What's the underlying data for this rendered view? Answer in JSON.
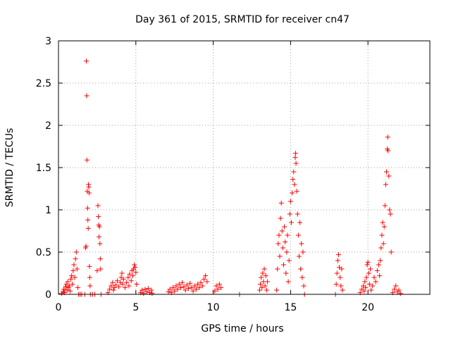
{
  "chart_data": {
    "type": "scatter",
    "title": "Day 361 of 2015, SRMTID for receiver cn47",
    "xlabel": "GPS time / hours",
    "ylabel": "SRMTID / TECUs",
    "xlim": [
      0,
      24
    ],
    "ylim": [
      0,
      3
    ],
    "xticks": [
      0,
      5,
      10,
      15,
      20
    ],
    "xtick_labels": [
      "0",
      "5",
      "10",
      "15",
      "20"
    ],
    "yticks": [
      0,
      0.5,
      1,
      1.5,
      2,
      2.5,
      3
    ],
    "ytick_labels": [
      "0",
      "0.5",
      "1",
      "1.5",
      "2",
      "2.5",
      "3"
    ],
    "grid": true,
    "marker": "+",
    "color": "#ff0000",
    "series": [
      {
        "name": "SRMTID",
        "points": [
          [
            0.2,
            0.01
          ],
          [
            0.3,
            0.03
          ],
          [
            0.35,
            0.06
          ],
          [
            0.4,
            0.02
          ],
          [
            0.45,
            0.09
          ],
          [
            0.5,
            0.12
          ],
          [
            0.55,
            0.05
          ],
          [
            0.6,
            0.15
          ],
          [
            0.65,
            0.08
          ],
          [
            0.7,
            0.1
          ],
          [
            0.75,
            0.04
          ],
          [
            0.8,
            0.18
          ],
          [
            0.85,
            0.22
          ],
          [
            0.9,
            0.12
          ],
          [
            0.95,
            0.28
          ],
          [
            1.0,
            0.35
          ],
          [
            1.05,
            0.2
          ],
          [
            1.1,
            0.42
          ],
          [
            1.15,
            0.5
          ],
          [
            1.2,
            0.3
          ],
          [
            1.25,
            0.08
          ],
          [
            1.3,
            0.0
          ],
          [
            1.4,
            0.0
          ],
          [
            1.5,
            0.0
          ],
          [
            1.7,
            0.0
          ],
          [
            1.75,
            0.55
          ],
          [
            1.78,
            0.57
          ],
          [
            1.8,
            2.76
          ],
          [
            1.82,
            2.35
          ],
          [
            1.84,
            1.59
          ],
          [
            1.86,
            1.22
          ],
          [
            1.88,
            1.02
          ],
          [
            1.9,
            0.88
          ],
          [
            1.92,
            0.78
          ],
          [
            1.94,
            1.3
          ],
          [
            1.96,
            1.27
          ],
          [
            1.98,
            1.2
          ],
          [
            2.0,
            0.33
          ],
          [
            2.02,
            0.2
          ],
          [
            2.04,
            0.1
          ],
          [
            2.06,
            0.0
          ],
          [
            2.2,
            0.0
          ],
          [
            2.35,
            0.0
          ],
          [
            2.5,
            0.28
          ],
          [
            2.55,
            1.05
          ],
          [
            2.58,
            0.92
          ],
          [
            2.6,
            0.82
          ],
          [
            2.62,
            0.68
          ],
          [
            2.65,
            0.8
          ],
          [
            2.68,
            0.6
          ],
          [
            2.7,
            0.42
          ],
          [
            2.72,
            0.3
          ],
          [
            2.75,
            0.0
          ],
          [
            3.2,
            0.02
          ],
          [
            3.3,
            0.06
          ],
          [
            3.4,
            0.1
          ],
          [
            3.5,
            0.14
          ],
          [
            3.55,
            0.05
          ],
          [
            3.6,
            0.08
          ],
          [
            3.7,
            0.11
          ],
          [
            3.8,
            0.16
          ],
          [
            3.9,
            0.09
          ],
          [
            4.0,
            0.14
          ],
          [
            4.05,
            0.2
          ],
          [
            4.1,
            0.25
          ],
          [
            4.15,
            0.12
          ],
          [
            4.2,
            0.18
          ],
          [
            4.3,
            0.08
          ],
          [
            4.4,
            0.14
          ],
          [
            4.5,
            0.2
          ],
          [
            4.55,
            0.1
          ],
          [
            4.6,
            0.24
          ],
          [
            4.7,
            0.16
          ],
          [
            4.75,
            0.28
          ],
          [
            4.8,
            0.22
          ],
          [
            4.85,
            0.3
          ],
          [
            4.9,
            0.35
          ],
          [
            4.95,
            0.32
          ],
          [
            5.0,
            0.26
          ],
          [
            5.05,
            0.12
          ],
          [
            5.3,
            0.02
          ],
          [
            5.4,
            0.05
          ],
          [
            5.5,
            0.01
          ],
          [
            5.6,
            0.06
          ],
          [
            5.7,
            0.03
          ],
          [
            5.8,
            0.07
          ],
          [
            5.9,
            0.02
          ],
          [
            6.0,
            0.05
          ],
          [
            6.05,
            0.01
          ],
          [
            7.1,
            0.03
          ],
          [
            7.2,
            0.06
          ],
          [
            7.3,
            0.02
          ],
          [
            7.4,
            0.08
          ],
          [
            7.5,
            0.04
          ],
          [
            7.6,
            0.1
          ],
          [
            7.7,
            0.06
          ],
          [
            7.8,
            0.12
          ],
          [
            7.9,
            0.08
          ],
          [
            8.0,
            0.14
          ],
          [
            8.1,
            0.09
          ],
          [
            8.2,
            0.05
          ],
          [
            8.3,
            0.11
          ],
          [
            8.4,
            0.07
          ],
          [
            8.5,
            0.13
          ],
          [
            8.6,
            0.08
          ],
          [
            8.7,
            0.04
          ],
          [
            8.8,
            0.1
          ],
          [
            8.9,
            0.06
          ],
          [
            9.0,
            0.12
          ],
          [
            9.1,
            0.08
          ],
          [
            9.2,
            0.14
          ],
          [
            9.3,
            0.1
          ],
          [
            9.4,
            0.18
          ],
          [
            9.5,
            0.22
          ],
          [
            9.6,
            0.15
          ],
          [
            10.1,
            0.04
          ],
          [
            10.2,
            0.1
          ],
          [
            10.3,
            0.06
          ],
          [
            10.4,
            0.12
          ],
          [
            10.5,
            0.08
          ],
          [
            11.7,
            0.0
          ],
          [
            13.0,
            0.05
          ],
          [
            13.05,
            0.12
          ],
          [
            13.1,
            0.2
          ],
          [
            13.15,
            0.08
          ],
          [
            13.2,
            0.25
          ],
          [
            13.25,
            0.15
          ],
          [
            13.3,
            0.3
          ],
          [
            13.35,
            0.1
          ],
          [
            13.4,
            0.22
          ],
          [
            13.45,
            0.05
          ],
          [
            13.5,
            0.15
          ],
          [
            14.1,
            0.05
          ],
          [
            14.15,
            0.3
          ],
          [
            14.2,
            0.6
          ],
          [
            14.25,
            0.7
          ],
          [
            14.3,
            0.45
          ],
          [
            14.35,
            0.9
          ],
          [
            14.4,
            1.08
          ],
          [
            14.45,
            0.75
          ],
          [
            14.5,
            0.55
          ],
          [
            14.55,
            0.35
          ],
          [
            14.6,
            0.8
          ],
          [
            14.65,
            0.62
          ],
          [
            14.7,
            0.25
          ],
          [
            14.75,
            0.5
          ],
          [
            14.8,
            0.7
          ],
          [
            14.85,
            0.15
          ],
          [
            14.9,
            0.4
          ],
          [
            14.95,
            0.95
          ],
          [
            15.0,
            1.1
          ],
          [
            15.05,
            0.85
          ],
          [
            15.1,
            1.2
          ],
          [
            15.15,
            1.36
          ],
          [
            15.2,
            1.45
          ],
          [
            15.25,
            1.3
          ],
          [
            15.3,
            1.62
          ],
          [
            15.32,
            1.67
          ],
          [
            15.35,
            1.55
          ],
          [
            15.4,
            1.22
          ],
          [
            15.45,
            0.95
          ],
          [
            15.5,
            0.7
          ],
          [
            15.55,
            0.45
          ],
          [
            15.6,
            0.85
          ],
          [
            15.65,
            0.3
          ],
          [
            15.7,
            0.6
          ],
          [
            15.75,
            0.2
          ],
          [
            15.8,
            0.5
          ],
          [
            15.85,
            0.1
          ],
          [
            15.9,
            0.0
          ],
          [
            17.9,
            0.0
          ],
          [
            17.95,
            0.12
          ],
          [
            18.0,
            0.25
          ],
          [
            18.05,
            0.4
          ],
          [
            18.1,
            0.47
          ],
          [
            18.15,
            0.32
          ],
          [
            18.2,
            0.2
          ],
          [
            18.25,
            0.1
          ],
          [
            18.3,
            0.3
          ],
          [
            18.35,
            0.05
          ],
          [
            19.5,
            0.02
          ],
          [
            19.6,
            0.06
          ],
          [
            19.7,
            0.1
          ],
          [
            19.75,
            0.04
          ],
          [
            19.8,
            0.15
          ],
          [
            19.85,
            0.08
          ],
          [
            19.9,
            0.2
          ],
          [
            19.95,
            0.35
          ],
          [
            20.0,
            0.38
          ],
          [
            20.05,
            0.25
          ],
          [
            20.1,
            0.12
          ],
          [
            20.15,
            0.3
          ],
          [
            20.2,
            0.05
          ],
          [
            20.3,
            0.1
          ],
          [
            20.4,
            0.2
          ],
          [
            20.5,
            0.15
          ],
          [
            20.6,
            0.28
          ],
          [
            20.7,
            0.35
          ],
          [
            20.75,
            0.22
          ],
          [
            20.8,
            0.4
          ],
          [
            20.85,
            0.55
          ],
          [
            20.9,
            0.7
          ],
          [
            20.95,
            0.85
          ],
          [
            21.0,
            0.6
          ],
          [
            21.05,
            0.8
          ],
          [
            21.1,
            1.05
          ],
          [
            21.15,
            1.3
          ],
          [
            21.2,
            1.45
          ],
          [
            21.25,
            1.72
          ],
          [
            21.28,
            1.86
          ],
          [
            21.3,
            1.7
          ],
          [
            21.35,
            1.4
          ],
          [
            21.4,
            1.0
          ],
          [
            21.45,
            0.95
          ],
          [
            21.5,
            0.5
          ],
          [
            21.6,
            0.02
          ],
          [
            21.7,
            0.06
          ],
          [
            21.8,
            0.1
          ],
          [
            21.9,
            0.03
          ],
          [
            22.0,
            0.05
          ],
          [
            22.1,
            0.01
          ]
        ]
      }
    ]
  }
}
